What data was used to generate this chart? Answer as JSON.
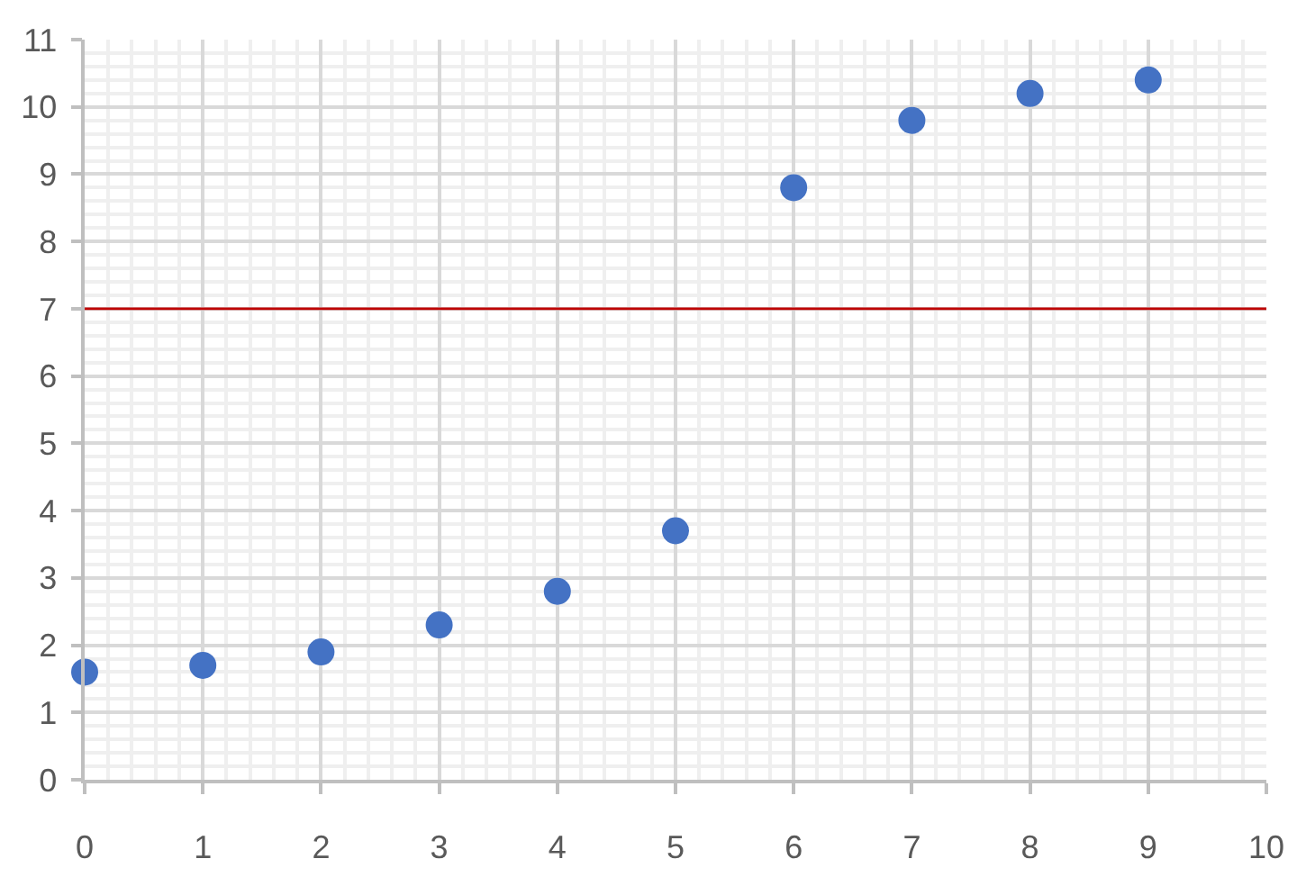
{
  "chart_data": {
    "type": "scatter",
    "x": [
      0,
      1,
      2,
      3,
      4,
      5,
      6,
      7,
      8,
      9
    ],
    "values": [
      1.6,
      1.7,
      1.9,
      2.3,
      2.8,
      3.7,
      8.8,
      9.8,
      10.2,
      10.4
    ],
    "color": "#4472c4",
    "marker": "circle",
    "xlim": [
      0,
      10
    ],
    "ylim": [
      0,
      11
    ],
    "xticks": [
      0,
      1,
      2,
      3,
      4,
      5,
      6,
      7,
      8,
      9,
      10
    ],
    "yticks": [
      0,
      1,
      2,
      3,
      4,
      5,
      6,
      7,
      8,
      9,
      10,
      11
    ],
    "grid": true,
    "ref_lines": [
      {
        "axis": "y",
        "value": 7,
        "color": "#c00000"
      }
    ]
  }
}
